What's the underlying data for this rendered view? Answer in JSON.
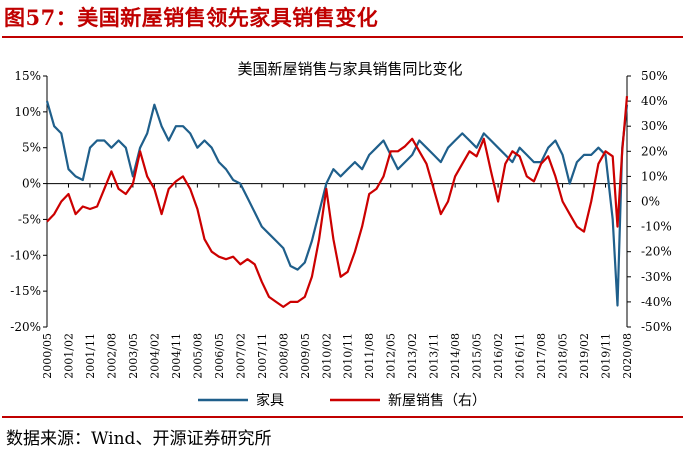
{
  "figure": {
    "title": "图57：美国新屋销售领先家具销售变化",
    "source": "数据来源：Wind、开源证券研究所"
  },
  "colors": {
    "furniture": "#1f5f8b",
    "new_home": "#cc0000",
    "title": "#c00000"
  },
  "chart_data": {
    "type": "line",
    "title": "美国新屋销售与家具销售同比变化",
    "xlabel": "",
    "ylabel_left": "",
    "ylabel_right": "",
    "x_ticks": [
      "2000/05",
      "2001/02",
      "2001/11",
      "2002/08",
      "2003/05",
      "2004/02",
      "2004/11",
      "2005/08",
      "2006/05",
      "2007/02",
      "2007/11",
      "2008/08",
      "2009/05",
      "2010/02",
      "2010/11",
      "2011/08",
      "2012/05",
      "2013/02",
      "2013/11",
      "2014/08",
      "2015/05",
      "2016/02",
      "2016/11",
      "2017/08",
      "2018/05",
      "2019/02",
      "2019/11",
      "2020/08"
    ],
    "left_axis": {
      "range": [
        -20,
        15
      ],
      "step": 5,
      "unit": "%",
      "ticks": [
        "15%",
        "10%",
        "5%",
        "0%",
        "-5%",
        "-10%",
        "-15%",
        "-20%"
      ]
    },
    "right_axis": {
      "range": [
        -50,
        50
      ],
      "step": 10,
      "unit": "%",
      "ticks": [
        "50%",
        "40%",
        "30%",
        "20%",
        "10%",
        "0%",
        "-10%",
        "-20%",
        "-30%",
        "-40%",
        "-50%"
      ]
    },
    "series": [
      {
        "name": "家具",
        "axis": "left",
        "points": [
          [
            "2000/05",
            11.5
          ],
          [
            "2000/08",
            8
          ],
          [
            "2000/11",
            7
          ],
          [
            "2001/02",
            2
          ],
          [
            "2001/05",
            1
          ],
          [
            "2001/08",
            0.5
          ],
          [
            "2001/11",
            5
          ],
          [
            "2002/02",
            6
          ],
          [
            "2002/05",
            6
          ],
          [
            "2002/08",
            5
          ],
          [
            "2002/11",
            6
          ],
          [
            "2003/02",
            5
          ],
          [
            "2003/05",
            1
          ],
          [
            "2003/08",
            5
          ],
          [
            "2003/11",
            7
          ],
          [
            "2004/02",
            11
          ],
          [
            "2004/05",
            8
          ],
          [
            "2004/08",
            6
          ],
          [
            "2004/11",
            8
          ],
          [
            "2005/02",
            8
          ],
          [
            "2005/05",
            7
          ],
          [
            "2005/08",
            5
          ],
          [
            "2005/11",
            6
          ],
          [
            "2006/02",
            5
          ],
          [
            "2006/05",
            3
          ],
          [
            "2006/08",
            2
          ],
          [
            "2006/11",
            0.5
          ],
          [
            "2007/02",
            0
          ],
          [
            "2007/05",
            -2
          ],
          [
            "2007/08",
            -4
          ],
          [
            "2007/11",
            -6
          ],
          [
            "2008/02",
            -7
          ],
          [
            "2008/05",
            -8
          ],
          [
            "2008/08",
            -9
          ],
          [
            "2008/11",
            -11.5
          ],
          [
            "2009/02",
            -12
          ],
          [
            "2009/05",
            -11
          ],
          [
            "2009/08",
            -8
          ],
          [
            "2009/11",
            -4
          ],
          [
            "2010/02",
            0
          ],
          [
            "2010/05",
            2
          ],
          [
            "2010/08",
            1
          ],
          [
            "2010/11",
            2
          ],
          [
            "2011/02",
            3
          ],
          [
            "2011/05",
            2
          ],
          [
            "2011/08",
            4
          ],
          [
            "2011/11",
            5
          ],
          [
            "2012/02",
            6
          ],
          [
            "2012/05",
            4
          ],
          [
            "2012/08",
            2
          ],
          [
            "2012/11",
            3
          ],
          [
            "2013/02",
            4
          ],
          [
            "2013/05",
            6
          ],
          [
            "2013/08",
            5
          ],
          [
            "2013/11",
            4
          ],
          [
            "2014/02",
            3
          ],
          [
            "2014/05",
            5
          ],
          [
            "2014/08",
            6
          ],
          [
            "2014/11",
            7
          ],
          [
            "2015/02",
            6
          ],
          [
            "2015/05",
            5
          ],
          [
            "2015/08",
            7
          ],
          [
            "2015/11",
            6
          ],
          [
            "2016/02",
            5
          ],
          [
            "2016/05",
            4
          ],
          [
            "2016/08",
            3
          ],
          [
            "2016/11",
            5
          ],
          [
            "2017/02",
            4
          ],
          [
            "2017/05",
            3
          ],
          [
            "2017/08",
            3
          ],
          [
            "2017/11",
            5
          ],
          [
            "2018/02",
            6
          ],
          [
            "2018/05",
            4
          ],
          [
            "2018/08",
            0
          ],
          [
            "2018/11",
            3
          ],
          [
            "2019/02",
            4
          ],
          [
            "2019/05",
            4
          ],
          [
            "2019/08",
            5
          ],
          [
            "2019/11",
            4
          ],
          [
            "2020/02",
            -5
          ],
          [
            "2020/04",
            -17
          ],
          [
            "2020/06",
            5
          ],
          [
            "2020/08",
            11
          ]
        ]
      },
      {
        "name": "新屋销售（右）",
        "axis": "right",
        "points": [
          [
            "2000/05",
            -8
          ],
          [
            "2000/08",
            -5
          ],
          [
            "2000/11",
            0
          ],
          [
            "2001/02",
            3
          ],
          [
            "2001/05",
            -5
          ],
          [
            "2001/08",
            -2
          ],
          [
            "2001/11",
            -3
          ],
          [
            "2002/02",
            -2
          ],
          [
            "2002/05",
            5
          ],
          [
            "2002/08",
            12
          ],
          [
            "2002/11",
            5
          ],
          [
            "2003/02",
            3
          ],
          [
            "2003/05",
            7
          ],
          [
            "2003/08",
            20
          ],
          [
            "2003/11",
            10
          ],
          [
            "2004/02",
            5
          ],
          [
            "2004/05",
            -5
          ],
          [
            "2004/08",
            5
          ],
          [
            "2004/11",
            8
          ],
          [
            "2005/02",
            10
          ],
          [
            "2005/05",
            5
          ],
          [
            "2005/08",
            -3
          ],
          [
            "2005/11",
            -15
          ],
          [
            "2006/02",
            -20
          ],
          [
            "2006/05",
            -22
          ],
          [
            "2006/08",
            -23
          ],
          [
            "2006/11",
            -22
          ],
          [
            "2007/02",
            -25
          ],
          [
            "2007/05",
            -23
          ],
          [
            "2007/08",
            -25
          ],
          [
            "2007/11",
            -32
          ],
          [
            "2008/02",
            -38
          ],
          [
            "2008/05",
            -40
          ],
          [
            "2008/08",
            -42
          ],
          [
            "2008/11",
            -40
          ],
          [
            "2009/02",
            -40
          ],
          [
            "2009/05",
            -38
          ],
          [
            "2009/08",
            -30
          ],
          [
            "2009/11",
            -15
          ],
          [
            "2010/02",
            5
          ],
          [
            "2010/05",
            -15
          ],
          [
            "2010/08",
            -30
          ],
          [
            "2010/11",
            -28
          ],
          [
            "2011/02",
            -20
          ],
          [
            "2011/05",
            -10
          ],
          [
            "2011/08",
            3
          ],
          [
            "2011/11",
            5
          ],
          [
            "2012/02",
            10
          ],
          [
            "2012/05",
            20
          ],
          [
            "2012/08",
            20
          ],
          [
            "2012/11",
            22
          ],
          [
            "2013/02",
            25
          ],
          [
            "2013/05",
            20
          ],
          [
            "2013/08",
            15
          ],
          [
            "2013/11",
            5
          ],
          [
            "2014/02",
            -5
          ],
          [
            "2014/05",
            0
          ],
          [
            "2014/08",
            10
          ],
          [
            "2014/11",
            15
          ],
          [
            "2015/02",
            20
          ],
          [
            "2015/05",
            18
          ],
          [
            "2015/08",
            25
          ],
          [
            "2015/11",
            12
          ],
          [
            "2016/02",
            0
          ],
          [
            "2016/05",
            15
          ],
          [
            "2016/08",
            20
          ],
          [
            "2016/11",
            18
          ],
          [
            "2017/02",
            10
          ],
          [
            "2017/05",
            8
          ],
          [
            "2017/08",
            15
          ],
          [
            "2017/11",
            18
          ],
          [
            "2018/02",
            10
          ],
          [
            "2018/05",
            0
          ],
          [
            "2018/08",
            -5
          ],
          [
            "2018/11",
            -10
          ],
          [
            "2019/02",
            -12
          ],
          [
            "2019/05",
            0
          ],
          [
            "2019/08",
            15
          ],
          [
            "2019/11",
            20
          ],
          [
            "2020/02",
            18
          ],
          [
            "2020/04",
            -10
          ],
          [
            "2020/06",
            20
          ],
          [
            "2020/08",
            42
          ]
        ]
      }
    ],
    "legend": {
      "position": "bottom",
      "entries": [
        "家具",
        "新屋销售（右）"
      ]
    }
  }
}
